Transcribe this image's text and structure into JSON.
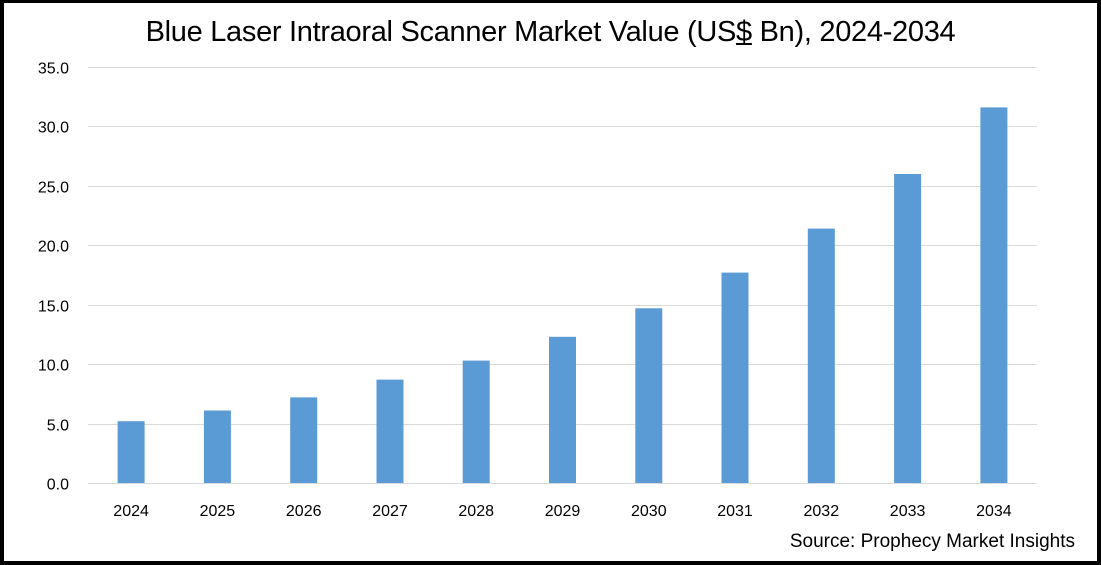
{
  "chart_data": {
    "type": "bar",
    "title_parts": [
      "Blue Laser Intraoral Scanner Market Value (US",
      "$",
      " Bn), 2024-2034"
    ],
    "title": "Blue Laser Intraoral Scanner Market Value (US$ Bn), 2024-2034",
    "xlabel": "",
    "ylabel": "",
    "categories": [
      "2024",
      "2025",
      "2026",
      "2027",
      "2028",
      "2029",
      "2030",
      "2031",
      "2032",
      "2033",
      "2034"
    ],
    "series": [
      {
        "name": "Market Value (US$ Bn)",
        "values": [
          5.2,
          6.1,
          7.2,
          8.7,
          10.3,
          12.3,
          14.7,
          17.7,
          21.4,
          26.0,
          31.6
        ],
        "color": "#5b9bd5"
      }
    ],
    "ylim": [
      0,
      35
    ],
    "yticks": [
      0,
      5,
      10,
      15,
      20,
      25,
      30,
      35
    ],
    "ytick_labels": [
      "0.0",
      "5.0",
      "10.0",
      "15.0",
      "20.0",
      "25.0",
      "30.0",
      "35.0"
    ],
    "grid": true,
    "gridline_color": "#d9d9d9",
    "legend": "none",
    "source": "Source: Prophecy Market Insights"
  }
}
